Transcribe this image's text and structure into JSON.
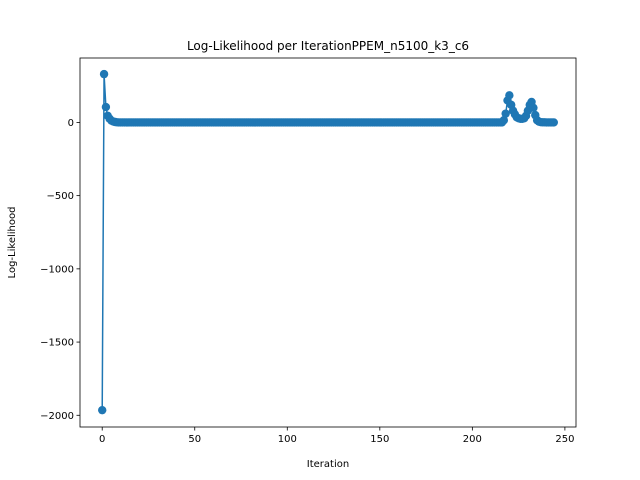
{
  "chart_data": {
    "type": "line",
    "title": "Log-Likelihood per IterationPPEM_n5100_k3_c6",
    "xlabel": "Iteration",
    "ylabel": "Log-Likelihood",
    "xlim": [
      -12,
      256
    ],
    "ylim": [
      -2080,
      440
    ],
    "xticks": [
      0,
      50,
      100,
      150,
      200,
      250
    ],
    "xtick_labels": [
      "0",
      "50",
      "100",
      "150",
      "200",
      "250"
    ],
    "yticks": [
      -2000,
      -1500,
      -1000,
      -500,
      0
    ],
    "ytick_labels": [
      "−2000",
      "−1500",
      "−1000",
      "−500",
      "0"
    ],
    "grid": false,
    "legend": "none",
    "series": [
      {
        "color": "#1f77b4",
        "marker": "circle",
        "segments": [
          {
            "x": [
              0,
              1,
              2,
              3,
              4,
              5,
              6,
              7,
              8
            ],
            "y": [
              -1965,
              330,
              105,
              45,
              25,
              12,
              6,
              3,
              1
            ]
          },
          {
            "x_start": 9,
            "x_end": 216,
            "y": 0
          },
          {
            "x": [
              217,
              218,
              219,
              220,
              221,
              222,
              223,
              224,
              225,
              226,
              227,
              228,
              229,
              230,
              231,
              232,
              233,
              234,
              235,
              236,
              237,
              238,
              239,
              240,
              241,
              242,
              243,
              244
            ],
            "y": [
              15,
              60,
              150,
              185,
              120,
              80,
              55,
              35,
              28,
              25,
              25,
              28,
              45,
              80,
              120,
              140,
              100,
              50,
              15,
              5,
              2,
              1,
              1,
              0,
              0,
              0,
              0,
              0
            ]
          }
        ]
      }
    ]
  }
}
